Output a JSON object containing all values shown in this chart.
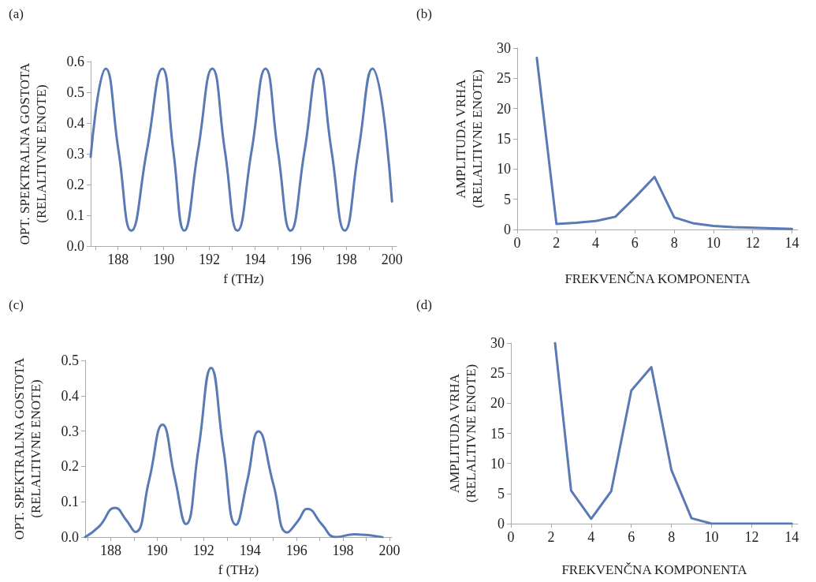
{
  "chart_data": [
    {
      "type": "line",
      "title": "(a)",
      "xlabel": "f (THz)",
      "ylabel": "OPT. SPEKTRALNA GOSTOTA\n(RELALTIVNE ENOTE)",
      "xlim": [
        186.8,
        200.2
      ],
      "ylim": [
        0,
        0.6
      ],
      "xticks": [
        {
          "value": 187,
          "label": null
        },
        188,
        {
          "value": 189,
          "label": null
        },
        190,
        {
          "value": 191,
          "label": null
        },
        192,
        {
          "value": 193,
          "label": null
        },
        194,
        {
          "value": 195,
          "label": null
        },
        196,
        {
          "value": 197,
          "label": null
        },
        198,
        {
          "value": 199,
          "label": null
        },
        200
      ],
      "yticks": [
        {
          "value": 0,
          "label": "0.0"
        },
        0.1,
        0.2,
        0.3,
        0.4,
        0.5,
        0.6
      ],
      "grid": false,
      "marker": "none",
      "line_style": "solid",
      "series": [
        {
          "color": "#5a7ab5",
          "x": [
            186.8,
            187.46,
            188.02,
            188.58,
            189.26,
            189.94,
            190.42,
            190.9,
            191.5,
            192.13,
            192.68,
            193.23,
            193.85,
            194.46,
            195.0,
            195.56,
            196.17,
            196.78,
            197.35,
            197.93,
            198.53,
            199.14,
            200.0
          ],
          "values": [
            0.29,
            0.577,
            0.31,
            0.05,
            0.31,
            0.577,
            0.31,
            0.05,
            0.31,
            0.577,
            0.31,
            0.05,
            0.31,
            0.577,
            0.31,
            0.05,
            0.31,
            0.577,
            0.31,
            0.05,
            0.31,
            0.577,
            0.145
          ]
        }
      ]
    },
    {
      "type": "line",
      "title": "(b)",
      "xlabel": "FREKVENČNA KOMPONENTA",
      "ylabel": "AMPLITUDA VRHA\n(RELALTIVNE ENOTE)",
      "xlim": [
        0,
        14.3
      ],
      "ylim": [
        0,
        30
      ],
      "xticks": [
        0,
        2,
        4,
        6,
        8,
        10,
        12,
        14
      ],
      "yticks": [
        0,
        5,
        10,
        15,
        20,
        25,
        30
      ],
      "grid": false,
      "marker": "none",
      "line_style": "solid",
      "series": [
        {
          "color": "#5a7ab5",
          "x": [
            1,
            2,
            3,
            4,
            5,
            6,
            7,
            8,
            9,
            10,
            11,
            12,
            13,
            14
          ],
          "values": [
            28.4,
            0.9,
            1.1,
            1.4,
            2.1,
            5.3,
            8.7,
            2.0,
            1.0,
            0.6,
            0.4,
            0.3,
            0.2,
            0.1
          ]
        }
      ]
    },
    {
      "type": "line",
      "title": "(c)",
      "xlabel": "f (THz)",
      "ylabel": "OPT. SPEKTRALNA GOSTOTA\n(RELALTIVNE ENOTE)",
      "xlim": [
        186.9,
        200.1
      ],
      "ylim": [
        0,
        0.5
      ],
      "xticks": [
        {
          "value": 187,
          "label": null
        },
        188,
        {
          "value": 189,
          "label": null
        },
        190,
        {
          "value": 191,
          "label": null
        },
        192,
        {
          "value": 193,
          "label": null
        },
        194,
        {
          "value": 195,
          "label": null
        },
        196,
        {
          "value": 197,
          "label": null
        },
        198,
        {
          "value": 199,
          "label": null
        },
        200
      ],
      "yticks": [
        {
          "value": 0,
          "label": "0.0"
        },
        0.1,
        0.2,
        0.3,
        0.4,
        0.5
      ],
      "grid": false,
      "marker": "none",
      "line_style": "solid",
      "series": [
        {
          "color": "#5a7ab5",
          "x": [
            186.9,
            187.5,
            188.19,
            188.65,
            189.06,
            189.65,
            190.23,
            190.75,
            191.24,
            191.78,
            192.32,
            192.85,
            193.39,
            193.88,
            194.36,
            195.0,
            195.6,
            196.05,
            196.47,
            197.1,
            197.68,
            198.5,
            199.7
          ],
          "values": [
            0.0,
            0.03,
            0.083,
            0.05,
            0.015,
            0.16,
            0.318,
            0.17,
            0.037,
            0.25,
            0.479,
            0.25,
            0.035,
            0.16,
            0.299,
            0.15,
            0.013,
            0.045,
            0.08,
            0.035,
            0.0,
            0.008,
            0.0
          ]
        }
      ]
    },
    {
      "type": "line",
      "title": "(d)",
      "xlabel": "FREKVENČNA KOMPONENTA",
      "ylabel": "AMPLITUDA VRHA\n(RELALTIVNE ENOTE)",
      "xlim": [
        0,
        14.3
      ],
      "ylim": [
        0,
        30
      ],
      "xticks": [
        0,
        2,
        4,
        6,
        8,
        10,
        12,
        14
      ],
      "yticks": [
        0,
        5,
        10,
        15,
        20,
        25,
        30
      ],
      "grid": false,
      "marker": "none",
      "line_style": "solid",
      "series": [
        {
          "color": "#5a7ab5",
          "x": [
            2.2,
            3,
            4,
            5,
            6,
            7,
            8,
            9,
            10,
            11,
            12,
            13,
            14
          ],
          "values": [
            30,
            5.5,
            0.8,
            5.4,
            22.1,
            26,
            8.9,
            0.9,
            0,
            0,
            0,
            0,
            0
          ]
        }
      ]
    }
  ]
}
